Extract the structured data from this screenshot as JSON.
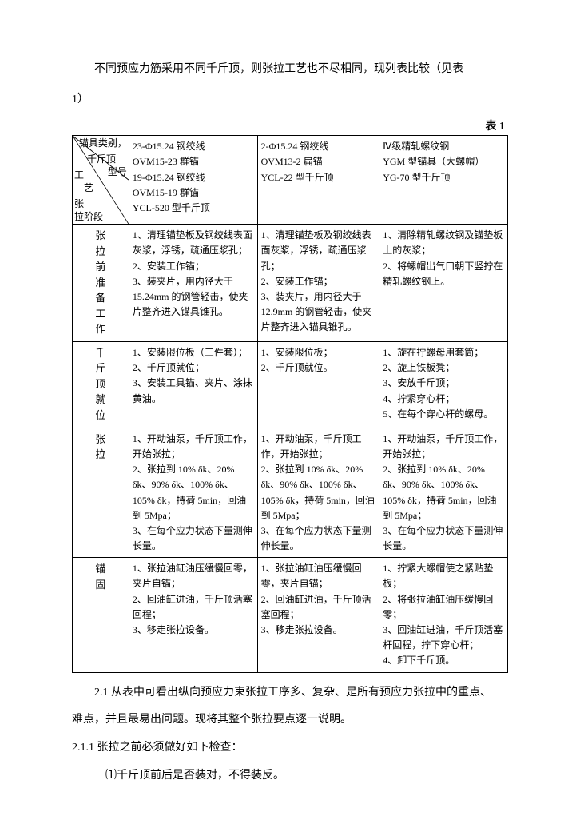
{
  "intro_line1": "不同预应力筋采用不同千斤顶，则张拉工艺也不尽相同，现列表比较（见表",
  "intro_line2": "1）",
  "table_label": "表 1",
  "diag_labels": {
    "top": "锚具类别，",
    "mid1": "千斤顶",
    "mid2": "型号",
    "left1": "工",
    "left2": "艺",
    "bottom1": "张",
    "bottom2": "拉阶段"
  },
  "header": {
    "col1": "23-Φ15.24 钢绞线\nOVM15-23 群锚\n19-Φ15.24 钢绞线\nOVM15-19 群锚\nYCL-520 型千斤顶",
    "col2": "2-Φ15.24 钢绞线\nOVM13-2 扁锚\nYCL-22 型千斤顶",
    "col3": "Ⅳ级精轧螺纹钢\nYGM 型锚具（大螺帽）\nYG-70 型千斤顶"
  },
  "rows": [
    {
      "label": "张拉前准备工作",
      "c1": "1、清理锚垫板及钢绞线表面灰浆，浮锈，疏通压浆孔；\n2、安装工作锚；\n3、装夹片，用内径大于 15.24mm 的钢管轻击，使夹片整齐进入锚具锥孔。",
      "c2": "1、清理锚垫板及钢绞线表面灰浆，浮锈，疏通压浆孔；\n2、安装工作锚；\n3、装夹片，用内径大于 12.9mm 的钢管轻击，使夹片整齐进入锚具锥孔。",
      "c3": "1、清除精轧螺纹钢及锚垫板上的灰浆；\n2、将螺帽出气口朝下竖拧在精轧螺纹钢上。"
    },
    {
      "label": "千斤顶就位",
      "c1": "1、安装限位板（三件套）；\n2、千斤顶就位；\n3、安装工具锚、夹片、涂抹黄油。",
      "c2": "1、安装限位板；\n2、千斤顶就位。",
      "c3": "1、旋在拧螺母用套筒；\n2、旋上铁板凳；\n3、安放千斤顶；\n4、拧紧穿心杆；\n5、在每个穿心杆的螺母。"
    },
    {
      "label": "张拉",
      "c1": "1、开动油泵，千斤顶工作，开始张拉；\n2、张拉到 10% δk、20% δk、90% δk、100% δk、105% δk，持荷 5min，回油到 5Mpa；\n3、在每个应力状态下量测伸长量。",
      "c2": "1、开动油泵，千斤顶工作，开始张拉；\n2、张拉到 10% δk、20% δk、90% δk、100% δk、105% δk，持荷 5min，回油到 5Mpa；\n3、在每个应力状态下量测伸长量。",
      "c3": "1、开动油泵，千斤顶工作，开始张拉；\n2、张拉到 10% δk、20% δk、90% δk、100% δk、105% δk，持荷 5min，回油到 5Mpa；\n3、在每个应力状态下量测伸长量。"
    },
    {
      "label": "锚固",
      "c1": "1、张拉油缸油压缓慢回零，夹片自锚；\n2、回油缸进油，千斤顶活塞回程；\n3、移走张拉设备。",
      "c2": "1、张拉油缸油压缓慢回零，夹片自锚；\n2、回油缸进油，千斤顶活塞回程；\n3、移走张拉设备。",
      "c3": "1、拧紧大螺帽使之紧贴垫板；\n2、将张拉油缸油压缓慢回零；\n3、回油缸进油，千斤顶活塞杆回程，拧下穿心杆；\n4、卸下千斤顶。"
    }
  ],
  "after": {
    "p1": "2.1 从表中可看出纵向预应力束张拉工序多、复杂、是所有预应力张拉中的重点、",
    "p2": "难点，并且最易出问题。现将其整个张拉要点逐一说明。",
    "p3": "2.1.1 张拉之前必须做好如下检查：",
    "p4": "⑴千斤顶前后是否装对，不得装反。"
  },
  "columns": {
    "w0": "13%",
    "w1": "29.5%",
    "w2": "28%",
    "w3": "29.5%"
  },
  "colors": {
    "text": "#000000",
    "border": "#000000",
    "background": "#ffffff"
  }
}
